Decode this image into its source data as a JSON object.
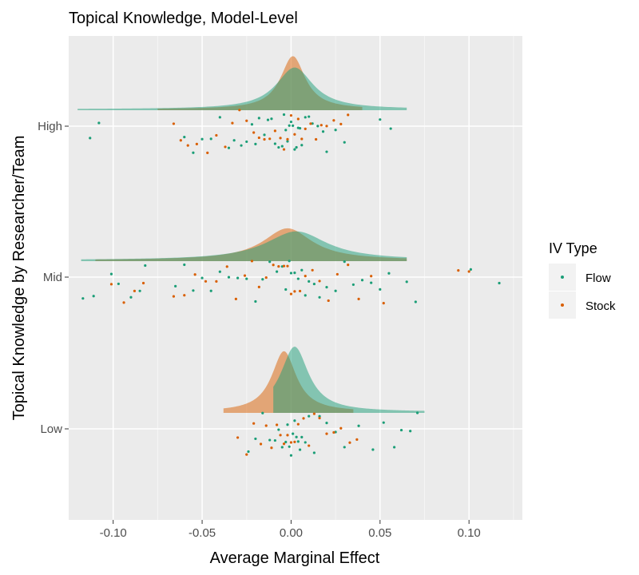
{
  "chart_data": {
    "type": "raincloud",
    "title": "Topical Knowledge, Model-Level",
    "xlabel": "Average Marginal Effect",
    "ylabel": "Topical Knowledge by Researcher/Team",
    "xlim": [
      -0.125,
      0.13
    ],
    "x_ticks": [
      -0.1,
      -0.05,
      0.0,
      0.05,
      0.1
    ],
    "x_tick_labels": [
      "-0.10",
      "-0.05",
      "0.00",
      "0.05",
      "0.10"
    ],
    "categories": [
      "High",
      "Mid",
      "Low"
    ],
    "grid": true,
    "legend": {
      "title": "IV Type",
      "placement": "right",
      "entries": [
        "Flow",
        "Stock"
      ]
    },
    "colors": {
      "Flow": "#1b9e77",
      "Stock": "#d95f02"
    },
    "series": [
      {
        "name": "Flow",
        "groups": {
          "High": {
            "density_mode": 0.002,
            "density_sd": 0.012,
            "density_range": [
              -0.12,
              0.065
            ],
            "density_peak": 0.55,
            "points": [
              -0.113,
              -0.108,
              -0.06,
              -0.055,
              -0.05,
              -0.045,
              -0.04,
              -0.035,
              -0.032,
              -0.028,
              -0.025,
              -0.022,
              -0.02,
              -0.018,
              -0.015,
              -0.013,
              -0.011,
              -0.009,
              -0.007,
              -0.005,
              -0.004,
              -0.003,
              -0.002,
              -0.001,
              0.0,
              0.001,
              0.002,
              0.003,
              0.004,
              0.005,
              0.006,
              0.008,
              0.01,
              0.012,
              0.015,
              0.018,
              0.02,
              0.025,
              0.03,
              0.05,
              0.056
            ]
          },
          "Mid": {
            "density_mode": 0.003,
            "density_sd": 0.02,
            "density_range": [
              -0.118,
              0.065
            ],
            "density_peak": 0.38,
            "points": [
              -0.117,
              -0.111,
              -0.101,
              -0.097,
              -0.09,
              -0.085,
              -0.082,
              -0.065,
              -0.06,
              -0.055,
              -0.05,
              -0.045,
              -0.04,
              -0.035,
              -0.03,
              -0.025,
              -0.02,
              -0.016,
              -0.012,
              -0.008,
              -0.005,
              -0.003,
              -0.001,
              0.0,
              0.002,
              0.004,
              0.006,
              0.008,
              0.01,
              0.013,
              0.016,
              0.02,
              0.025,
              0.03,
              0.035,
              0.04,
              0.045,
              0.05,
              0.055,
              0.065,
              0.07,
              0.101,
              0.117
            ]
          },
          "Low": {
            "density_mode": 0.002,
            "density_sd": 0.009,
            "density_range": [
              -0.01,
              0.075
            ],
            "density_peak": 0.86,
            "points": [
              -0.024,
              -0.02,
              -0.016,
              -0.012,
              -0.009,
              -0.007,
              -0.005,
              -0.003,
              -0.002,
              -0.001,
              0.0,
              0.001,
              0.002,
              0.003,
              0.004,
              0.005,
              0.006,
              0.008,
              0.01,
              0.013,
              0.016,
              0.02,
              0.025,
              0.03,
              0.038,
              0.046,
              0.052,
              0.058,
              0.062,
              0.067,
              0.071
            ]
          }
        }
      },
      {
        "name": "Stock",
        "groups": {
          "High": {
            "density_mode": 0.001,
            "density_sd": 0.008,
            "density_range": [
              -0.075,
              0.04
            ],
            "density_peak": 0.7,
            "points": [
              -0.066,
              -0.062,
              -0.058,
              -0.053,
              -0.047,
              -0.042,
              -0.037,
              -0.033,
              -0.029,
              -0.025,
              -0.021,
              -0.018,
              -0.015,
              -0.012,
              -0.009,
              -0.006,
              -0.004,
              -0.002,
              0.0,
              0.002,
              0.004,
              0.006,
              0.008,
              0.011,
              0.014,
              0.017,
              0.02,
              0.024,
              0.028,
              0.032
            ]
          },
          "Mid": {
            "density_mode": -0.002,
            "density_sd": 0.016,
            "density_range": [
              -0.11,
              0.065
            ],
            "density_peak": 0.42,
            "points": [
              -0.101,
              -0.094,
              -0.088,
              -0.083,
              -0.066,
              -0.06,
              -0.054,
              -0.048,
              -0.042,
              -0.036,
              -0.031,
              -0.026,
              -0.022,
              -0.018,
              -0.014,
              -0.01,
              -0.007,
              -0.004,
              -0.002,
              0.0,
              0.002,
              0.005,
              0.008,
              0.012,
              0.016,
              0.021,
              0.026,
              0.032,
              0.038,
              0.045,
              0.052,
              0.094,
              0.1
            ]
          },
          "Low": {
            "density_mode": -0.004,
            "density_sd": 0.008,
            "density_range": [
              -0.038,
              0.035
            ],
            "density_peak": 0.8,
            "points": [
              -0.03,
              -0.025,
              -0.021,
              -0.017,
              -0.014,
              -0.011,
              -0.008,
              -0.006,
              -0.004,
              -0.002,
              0.0,
              0.002,
              0.004,
              0.007,
              0.01,
              0.013,
              0.016,
              0.02,
              0.024,
              0.028,
              0.033,
              0.037
            ]
          }
        }
      }
    ]
  }
}
